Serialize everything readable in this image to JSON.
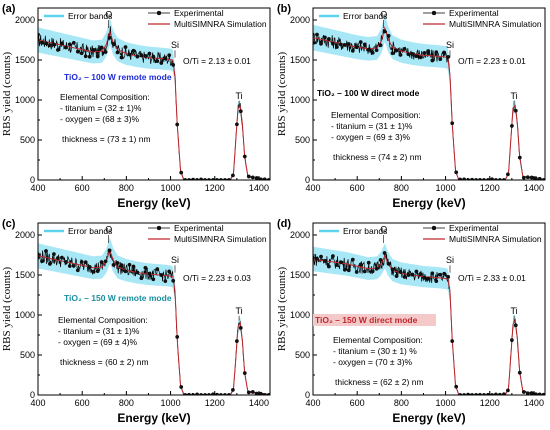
{
  "colors": {
    "experimental": "#000000",
    "simulation": "#c0282d",
    "error_band": "#5fd3ee",
    "mode_remote": "#1f2bd8",
    "mode_direct": "#000000",
    "mode_c": "#1a8fa0",
    "mode_d": "#c0282d",
    "mode_d_bg": "#f4c9c9"
  },
  "legend": {
    "error_bands": "Error bands",
    "experimental": "Experimental",
    "simulation": "MultiSIMNRA Simulation"
  },
  "axes": {
    "xlabel": "Energy (keV)",
    "ylabel": "RBS yield (counts)"
  },
  "common_labels": {
    "elemental": "Elemental Composition:",
    "peak_O": "O",
    "peak_Si": "Si",
    "peak_Ti": "Ti"
  },
  "panels": [
    {
      "label": "(a)",
      "ratio": "O/Ti = 2.13 ± 0.01",
      "mode": "TiO₂ – 100 W remote mode",
      "titanium": "- titanium = (32 ± 1)%",
      "oxygen": "- oxygen = (68 ± 3)%",
      "thickness": "thickness = (73 ± 1) nm"
    },
    {
      "label": "(b)",
      "ratio": "O/Ti = 2.23 ± 0.01",
      "mode": "TiO₂ – 100 W direct mode",
      "titanium": "- titanium = (31 ± 1)%",
      "oxygen": "- oxygen = (69 ± 3)%",
      "thickness": "thickness = (74 ± 2) nm"
    },
    {
      "label": "(c)",
      "ratio": "O/Ti = 2.23 ± 0.03",
      "mode": "TiO₂ – 150 W remote mode",
      "titanium": "- titanium = (31 ± 1)%",
      "oxygen": "- oxygen = (69 ± 4)%",
      "thickness": "thickness = (60 ± 2) nm"
    },
    {
      "label": "(d)",
      "ratio": "O/Ti = 2.33 ± 0.01",
      "mode": "TiO₂ – 150 W direct mode",
      "titanium": "- titanium = (30 ± 1) %",
      "oxygen": "- oxygen = (70 ± 3)%",
      "thickness": "thickness = (62 ± 2) nm"
    }
  ],
  "chart_data": [
    {
      "type": "scatter",
      "panel": "(a)",
      "xlim": [
        400,
        1450
      ],
      "ylim": [
        0,
        2150
      ],
      "xticks": [
        400,
        600,
        800,
        1000,
        1200,
        1400
      ],
      "yticks": [
        0,
        500,
        1000,
        1500,
        2000
      ],
      "series": [
        {
          "name": "MultiSIMNRA Simulation",
          "x": [
            400,
            450,
            500,
            550,
            600,
            650,
            690,
            710,
            725,
            740,
            760,
            800,
            850,
            900,
            950,
            990,
            1010,
            1020,
            1030,
            1045,
            1060,
            1200,
            1270,
            1285,
            1295,
            1305,
            1315,
            1325,
            1335,
            1350,
            1450
          ],
          "y": [
            1750,
            1720,
            1690,
            1660,
            1630,
            1600,
            1610,
            1700,
            1860,
            1720,
            1630,
            1580,
            1550,
            1530,
            1520,
            1510,
            1500,
            1300,
            700,
            120,
            0,
            0,
            0,
            80,
            500,
            900,
            920,
            700,
            300,
            40,
            0
          ]
        }
      ]
    },
    {
      "type": "scatter",
      "panel": "(b)",
      "xlim": [
        400,
        1450
      ],
      "ylim": [
        0,
        2150
      ],
      "xticks": [
        400,
        600,
        800,
        1000,
        1200,
        1400
      ],
      "yticks": [
        0,
        500,
        1000,
        1500,
        2000
      ],
      "series": [
        {
          "name": "MultiSIMNRA Simulation",
          "x": [
            400,
            450,
            500,
            550,
            600,
            650,
            690,
            710,
            725,
            740,
            760,
            800,
            850,
            900,
            950,
            990,
            1010,
            1020,
            1030,
            1045,
            1060,
            1200,
            1270,
            1285,
            1295,
            1305,
            1315,
            1325,
            1335,
            1350,
            1450
          ],
          "y": [
            1780,
            1750,
            1720,
            1690,
            1660,
            1640,
            1650,
            1740,
            1900,
            1760,
            1660,
            1610,
            1580,
            1560,
            1550,
            1540,
            1530,
            1300,
            700,
            120,
            0,
            0,
            0,
            80,
            500,
            900,
            930,
            700,
            300,
            40,
            0
          ]
        }
      ]
    },
    {
      "type": "scatter",
      "panel": "(c)",
      "xlim": [
        400,
        1450
      ],
      "ylim": [
        0,
        2150
      ],
      "xticks": [
        400,
        600,
        800,
        1000,
        1200,
        1400
      ],
      "yticks": [
        0,
        500,
        1000,
        1500,
        2000
      ],
      "series": [
        {
          "name": "MultiSIMNRA Simulation",
          "x": [
            400,
            450,
            500,
            550,
            600,
            650,
            690,
            710,
            725,
            740,
            760,
            800,
            850,
            900,
            950,
            990,
            1010,
            1020,
            1030,
            1045,
            1060,
            1200,
            1270,
            1285,
            1295,
            1305,
            1315,
            1325,
            1335,
            1350,
            1450
          ],
          "y": [
            1740,
            1710,
            1680,
            1650,
            1620,
            1590,
            1600,
            1680,
            1810,
            1690,
            1600,
            1560,
            1530,
            1510,
            1500,
            1490,
            1480,
            1300,
            700,
            120,
            0,
            0,
            0,
            80,
            450,
            850,
            900,
            680,
            280,
            40,
            0
          ]
        }
      ]
    },
    {
      "type": "scatter",
      "panel": "(d)",
      "xlim": [
        400,
        1450
      ],
      "ylim": [
        0,
        2150
      ],
      "xticks": [
        400,
        600,
        800,
        1000,
        1200,
        1400
      ],
      "yticks": [
        0,
        500,
        1000,
        1500,
        2000
      ],
      "series": [
        {
          "name": "MultiSIMNRA Simulation",
          "x": [
            400,
            450,
            500,
            550,
            600,
            650,
            690,
            710,
            725,
            740,
            760,
            800,
            850,
            900,
            950,
            990,
            1010,
            1020,
            1030,
            1045,
            1060,
            1200,
            1270,
            1285,
            1295,
            1305,
            1315,
            1325,
            1335,
            1350,
            1450
          ],
          "y": [
            1700,
            1680,
            1660,
            1640,
            1610,
            1580,
            1590,
            1650,
            1740,
            1640,
            1560,
            1520,
            1500,
            1480,
            1470,
            1460,
            1450,
            1300,
            700,
            120,
            0,
            0,
            0,
            80,
            480,
            880,
            940,
            700,
            300,
            40,
            0
          ]
        }
      ]
    }
  ]
}
